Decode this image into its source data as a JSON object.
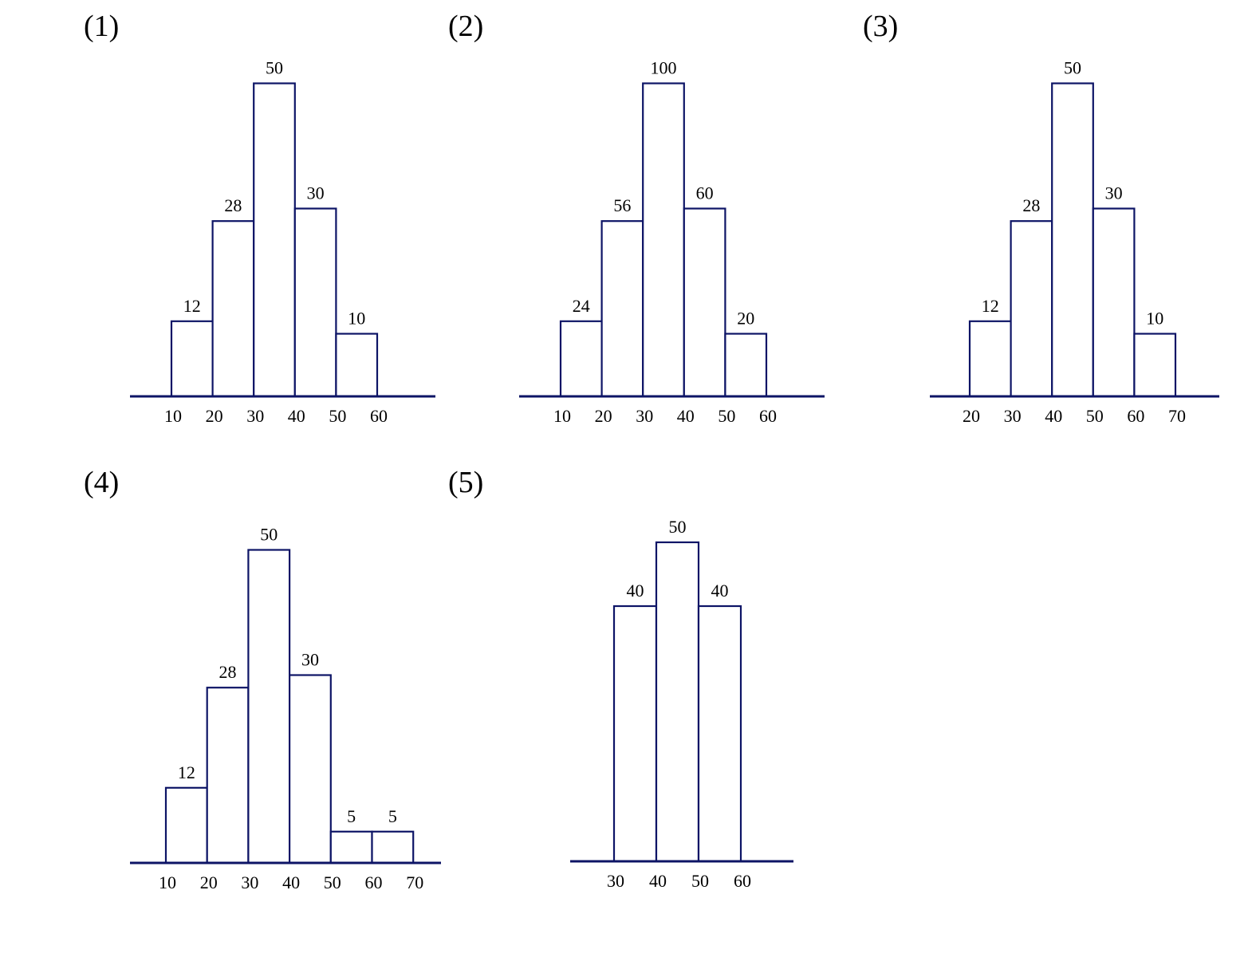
{
  "colors": {
    "stroke": "#0d1466",
    "background": "#ffffff",
    "text": "#000000"
  },
  "chart_data": [
    {
      "type": "bar",
      "panel_label": "(1)",
      "bins": [
        [
          10,
          20
        ],
        [
          20,
          30
        ],
        [
          30,
          40
        ],
        [
          40,
          50
        ],
        [
          50,
          60
        ]
      ],
      "values": [
        12,
        28,
        50,
        30,
        10
      ],
      "value_labels": [
        "12",
        "28",
        "50",
        "30",
        "10"
      ],
      "tick_labels": [
        "10",
        "20",
        "30",
        "40",
        "50",
        "60"
      ]
    },
    {
      "type": "bar",
      "panel_label": "(2)",
      "bins": [
        [
          10,
          20
        ],
        [
          20,
          30
        ],
        [
          30,
          40
        ],
        [
          40,
          50
        ],
        [
          50,
          60
        ]
      ],
      "values": [
        24,
        56,
        100,
        60,
        20
      ],
      "value_labels": [
        "24",
        "56",
        "100",
        "60",
        "20"
      ],
      "tick_labels": [
        "10",
        "20",
        "30",
        "40",
        "50",
        "60"
      ]
    },
    {
      "type": "bar",
      "panel_label": "(3)",
      "bins": [
        [
          20,
          30
        ],
        [
          30,
          40
        ],
        [
          40,
          50
        ],
        [
          50,
          60
        ],
        [
          60,
          70
        ]
      ],
      "values": [
        12,
        28,
        50,
        30,
        10
      ],
      "value_labels": [
        "12",
        "28",
        "50",
        "30",
        "10"
      ],
      "tick_labels": [
        "20",
        "30",
        "40",
        "50",
        "60",
        "70"
      ]
    },
    {
      "type": "bar",
      "panel_label": "(4)",
      "bins": [
        [
          10,
          20
        ],
        [
          20,
          30
        ],
        [
          30,
          40
        ],
        [
          40,
          50
        ],
        [
          50,
          60
        ],
        [
          60,
          70
        ]
      ],
      "values": [
        12,
        28,
        50,
        30,
        5,
        5
      ],
      "value_labels": [
        "12",
        "28",
        "50",
        "30",
        "5",
        "5"
      ],
      "tick_labels": [
        "10",
        "20",
        "30",
        "40",
        "50",
        "60",
        "70"
      ]
    },
    {
      "type": "bar",
      "panel_label": "(5)",
      "bins": [
        [
          30,
          40
        ],
        [
          40,
          50
        ],
        [
          50,
          60
        ]
      ],
      "values": [
        40,
        50,
        40
      ],
      "value_labels": [
        "40",
        "50",
        "40"
      ],
      "tick_labels": [
        "30",
        "40",
        "50",
        "60"
      ]
    }
  ]
}
